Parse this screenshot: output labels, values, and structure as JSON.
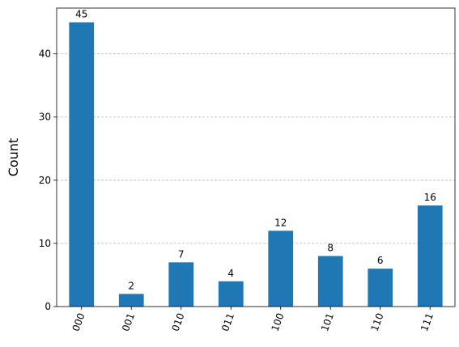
{
  "colors": {
    "bar": "#1f77b4",
    "grid": "#b0b0b0",
    "axis": "#000000",
    "background": "#ffffff"
  },
  "chart_data": {
    "type": "bar",
    "title": "",
    "xlabel": "",
    "ylabel": "Count",
    "categories": [
      "000",
      "001",
      "010",
      "011",
      "100",
      "101",
      "110",
      "111"
    ],
    "values": [
      45,
      2,
      7,
      4,
      12,
      8,
      6,
      16
    ],
    "ylim": [
      0,
      47.25
    ],
    "yticks": [
      0,
      10,
      20,
      30,
      40
    ],
    "ytick_labels": [
      "0",
      "10",
      "20",
      "30",
      "40"
    ],
    "grid": "horizontal dashed",
    "data_labels": true,
    "xtick_rotation": 70
  }
}
